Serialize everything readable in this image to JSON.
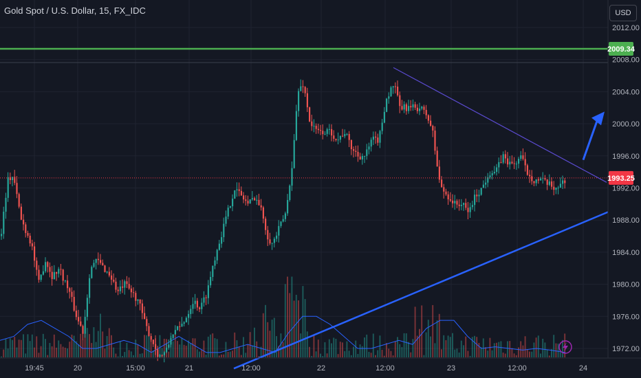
{
  "header": {
    "symbol_title": "Gold Spot / U.S. Dollar, 15, FX_IDC"
  },
  "currency_button": {
    "label": "USD"
  },
  "colors": {
    "background": "#141823",
    "grid": "#1f2330",
    "bull": "#26a69a",
    "bear": "#ef5350",
    "resistance": "#4caf50",
    "current_price": "#f23645",
    "support": "#2962ff",
    "descending": "#5b4bd1",
    "volume_ma": "#2962ff"
  },
  "chart_data": {
    "type": "candlestick",
    "title": "Gold Spot / U.S. Dollar, 15, FX_IDC",
    "ylim": [
      1969.5,
      2013.5
    ],
    "y_ticks": [
      "2012.00",
      "2008.00",
      "2004.00",
      "2000.00",
      "1996.00",
      "1992.00",
      "1988.00",
      "1984.00",
      "1980.00",
      "1976.00",
      "1972.00"
    ],
    "x_ticks": [
      "19:45",
      "20",
      "15:00",
      "21",
      "12:00",
      "22",
      "12:00",
      "23",
      "12:00",
      "24"
    ],
    "grid": true,
    "price_path": [
      [
        0,
        1986
      ],
      [
        10,
        1993
      ],
      [
        18,
        1993.5
      ],
      [
        30,
        1988
      ],
      [
        45,
        1985
      ],
      [
        55,
        1980
      ],
      [
        65,
        1983
      ],
      [
        75,
        1981
      ],
      [
        85,
        1982
      ],
      [
        100,
        1979
      ],
      [
        110,
        1976
      ],
      [
        120,
        1974
      ],
      [
        130,
        1982
      ],
      [
        140,
        1983
      ],
      [
        150,
        1982
      ],
      [
        160,
        1981
      ],
      [
        170,
        1979
      ],
      [
        180,
        1980
      ],
      [
        190,
        1979
      ],
      [
        200,
        1978
      ],
      [
        210,
        1975
      ],
      [
        220,
        1973
      ],
      [
        230,
        1971
      ],
      [
        240,
        1971.5
      ],
      [
        250,
        1974
      ],
      [
        260,
        1974.5
      ],
      [
        270,
        1976
      ],
      [
        280,
        1978
      ],
      [
        290,
        1977
      ],
      [
        300,
        1979
      ],
      [
        310,
        1983
      ],
      [
        320,
        1986
      ],
      [
        330,
        1989
      ],
      [
        340,
        1992
      ],
      [
        350,
        1991
      ],
      [
        360,
        1990
      ],
      [
        370,
        1991
      ],
      [
        380,
        1989
      ],
      [
        388,
        1986
      ],
      [
        395,
        1985
      ],
      [
        405,
        1987
      ],
      [
        415,
        1989
      ],
      [
        425,
        1996
      ],
      [
        432,
        2004
      ],
      [
        440,
        2005
      ],
      [
        450,
        2000
      ],
      [
        460,
        1999
      ],
      [
        470,
        1999
      ],
      [
        480,
        1999
      ],
      [
        490,
        1998
      ],
      [
        500,
        1999
      ],
      [
        510,
        1997
      ],
      [
        520,
        1996
      ],
      [
        530,
        1996
      ],
      [
        540,
        1998
      ],
      [
        550,
        1998
      ],
      [
        560,
        2003
      ],
      [
        572,
        2005
      ],
      [
        580,
        2002
      ],
      [
        590,
        2002
      ],
      [
        600,
        2002
      ],
      [
        610,
        2002
      ],
      [
        620,
        2001
      ],
      [
        628,
        1999
      ],
      [
        634,
        1995
      ],
      [
        640,
        1992
      ],
      [
        650,
        1991
      ],
      [
        660,
        1990
      ],
      [
        670,
        1990
      ],
      [
        680,
        1989
      ],
      [
        690,
        1991
      ],
      [
        700,
        1992
      ],
      [
        710,
        1994
      ],
      [
        720,
        1994
      ],
      [
        730,
        1996
      ],
      [
        740,
        1995
      ],
      [
        748,
        1995
      ],
      [
        756,
        1996
      ],
      [
        765,
        1994
      ],
      [
        775,
        1993
      ],
      [
        785,
        1993
      ],
      [
        795,
        1992.5
      ],
      [
        805,
        1992
      ],
      [
        815,
        1992.5
      ],
      [
        822,
        1993.25
      ]
    ],
    "volume_ma_path": [
      [
        0,
        1973
      ],
      [
        20,
        1973.5
      ],
      [
        40,
        1975
      ],
      [
        60,
        1975.5
      ],
      [
        80,
        1974.5
      ],
      [
        100,
        1973.5
      ],
      [
        120,
        1972
      ],
      [
        140,
        1972
      ],
      [
        160,
        1972.5
      ],
      [
        180,
        1973
      ],
      [
        200,
        1972.5
      ],
      [
        220,
        1971.5
      ],
      [
        240,
        1972.5
      ],
      [
        260,
        1973.5
      ],
      [
        280,
        1972.5
      ],
      [
        300,
        1971.5
      ],
      [
        320,
        1971.5
      ],
      [
        340,
        1972
      ],
      [
        360,
        1972.5
      ],
      [
        380,
        1972
      ],
      [
        400,
        1971.5
      ],
      [
        420,
        1974
      ],
      [
        440,
        1976
      ],
      [
        460,
        1976
      ],
      [
        480,
        1975
      ],
      [
        500,
        1973.5
      ],
      [
        520,
        1972
      ],
      [
        540,
        1972
      ],
      [
        560,
        1972.5
      ],
      [
        580,
        1973
      ],
      [
        600,
        1972.5
      ],
      [
        620,
        1974.5
      ],
      [
        640,
        1975.5
      ],
      [
        660,
        1975.5
      ],
      [
        680,
        1973.5
      ],
      [
        700,
        1972
      ],
      [
        720,
        1972.2
      ],
      [
        740,
        1972
      ],
      [
        760,
        1971.8
      ],
      [
        780,
        1972
      ],
      [
        800,
        1971.8
      ],
      [
        822,
        1971.5
      ]
    ],
    "horizontal_lines": [
      {
        "name": "resistance",
        "price": 2009.34,
        "label": "2009.34"
      },
      {
        "name": "current",
        "price": 1993.25,
        "label": "1993.25"
      }
    ],
    "trend_lines": [
      {
        "name": "support",
        "x1": 340,
        "p1": 1969.5,
        "x2": 884,
        "p2": 1989
      },
      {
        "name": "descending",
        "x1": 572,
        "p1": 2007,
        "x2": 882,
        "p2": 1992.7
      }
    ],
    "projection_arrow": {
      "direction": "up",
      "from_price": 1995.5,
      "to_price": 2001
    }
  }
}
